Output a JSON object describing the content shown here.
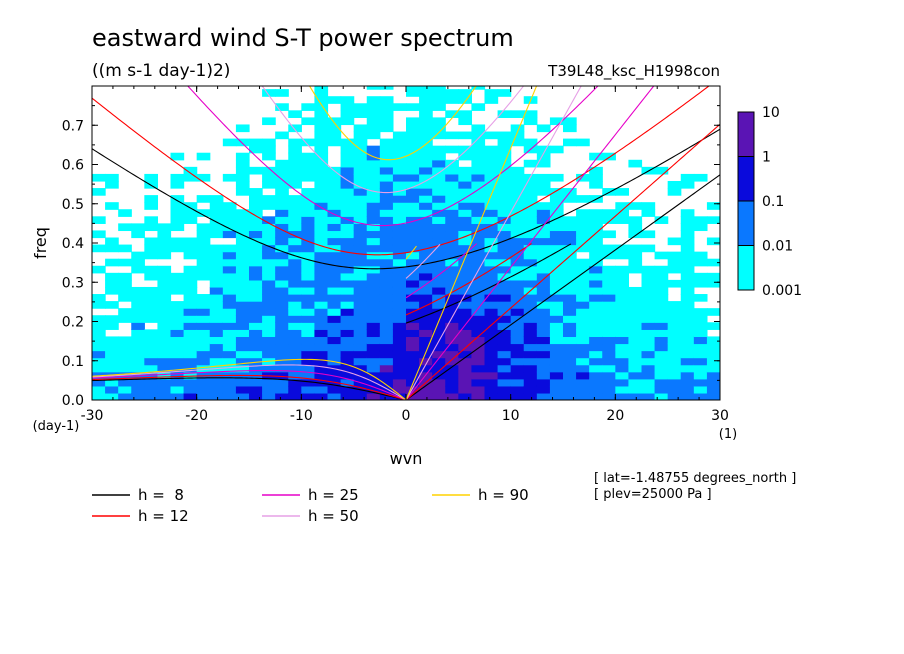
{
  "chart_data": {
    "type": "heatmap",
    "title": "eastward wind S-T power spectrum",
    "subtitle": "((m s-1 day-1)2)",
    "run_label": "T39L48_ksc_H1998con",
    "xlabel": "wvn",
    "xunit": "(1)",
    "ylabel": "freq",
    "yunit": "(day-1)",
    "xlim": [
      -30,
      30
    ],
    "ylim": [
      0,
      0.8
    ],
    "x_ticks": [
      -30,
      -20,
      -10,
      0,
      10,
      20,
      30
    ],
    "x_tick_labels": [
      "-30",
      "-20",
      "-10",
      "0",
      "10",
      "20",
      "30"
    ],
    "y_ticks": [
      0,
      0.1,
      0.2,
      0.3,
      0.4,
      0.5,
      0.6,
      0.7
    ],
    "y_tick_labels": [
      "0.0",
      "0.1",
      "0.2",
      "0.3",
      "0.4",
      "0.5",
      "0.6",
      "0.7"
    ],
    "colorbar": {
      "levels": [
        "0.001",
        "0.01",
        "0.1",
        "1",
        "10"
      ],
      "colors": [
        "#00ffff",
        "#0a78ff",
        "#0a0adc",
        "#5a14b4"
      ],
      "scale": "log"
    },
    "dispersion_curves": [
      {
        "label": "h =  8",
        "h": 8,
        "color": "#000000"
      },
      {
        "label": "h = 12",
        "h": 12,
        "color": "#ff0000"
      },
      {
        "label": "h = 25",
        "h": 25,
        "color": "#e600c8"
      },
      {
        "label": "h = 50",
        "h": 50,
        "color": "#e6a0e6"
      },
      {
        "label": "h = 90",
        "h": 90,
        "color": "#ffd200"
      }
    ],
    "annotations": [
      "[ lat=-1.48755 degrees_north ]",
      "[ plev=25000 Pa ]"
    ],
    "grid": false
  }
}
